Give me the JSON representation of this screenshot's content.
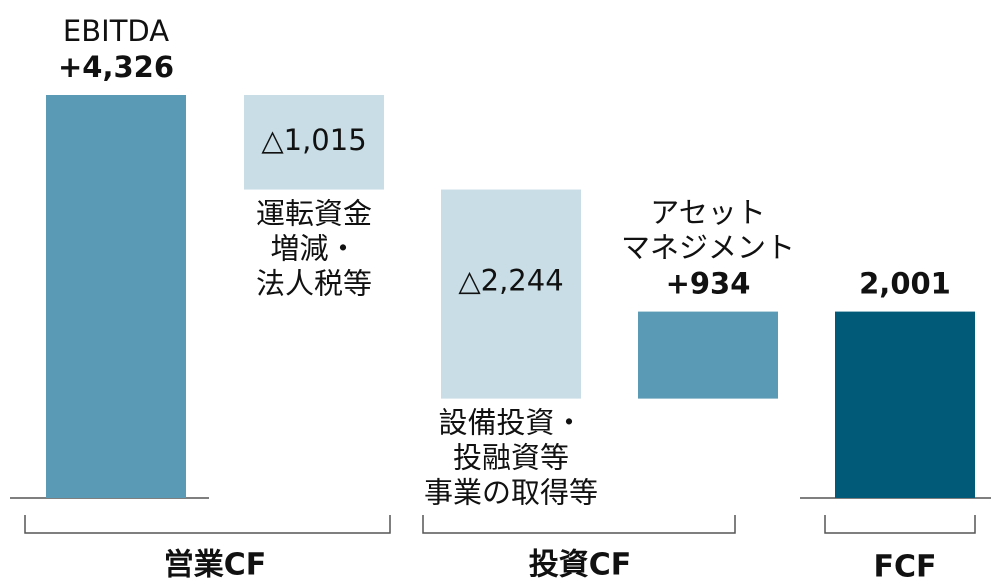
{
  "chart_data": {
    "type": "waterfall",
    "categories": [
      "EBITDA",
      "運転資金\n増減・\n法人税等",
      "設備投資・\n投融資等\n事業の取得等",
      "アセット\nマネジメント",
      null
    ],
    "values": [
      4326,
      -1015,
      -2244,
      934,
      2001
    ],
    "value_labels": [
      "+4,326",
      "△1,015",
      "△2,244",
      "+934",
      "2,001"
    ],
    "colors": {
      "increase": "#5b9ab5",
      "decrease": "#c8dde6",
      "total": "#005a78"
    },
    "groups": [
      "営業CF",
      "投資CF",
      "FCF"
    ]
  }
}
